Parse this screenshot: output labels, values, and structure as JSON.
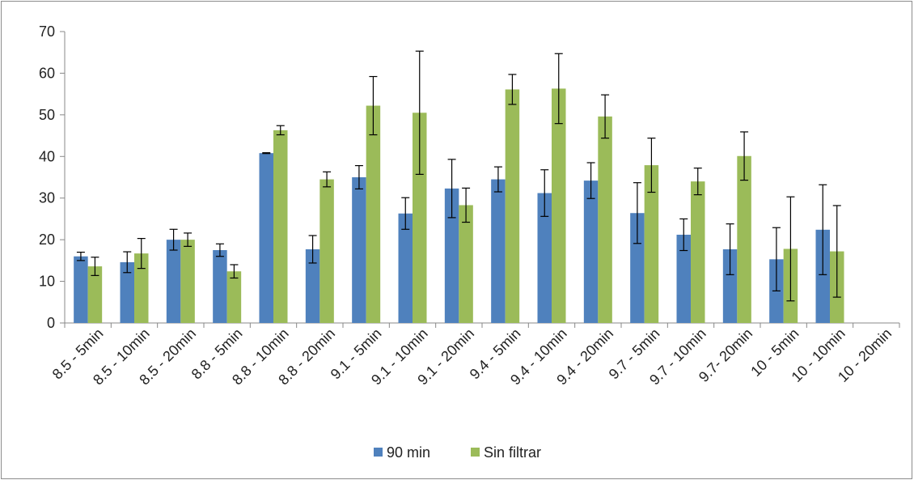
{
  "chart_data": {
    "type": "bar",
    "categories": [
      "8.5 - 5min",
      "8.5 - 10min",
      "8.5 - 20min",
      "8.8 - 5min",
      "8.8 - 10min",
      "8.8 - 20min",
      "9.1 - 5min",
      "9.1 - 10min",
      "9.1 - 20min",
      "9.4 - 5min",
      "9.4 - 10min",
      "9.4 - 20min",
      "9.7 - 5min",
      "9.7 - 10min",
      "9.7- 20min",
      "10 - 5min",
      "10 - 10min",
      "10 - 20min"
    ],
    "series": [
      {
        "name": "90 min",
        "color": "#4f81bd",
        "values": [
          16,
          14.6,
          20,
          17.5,
          40.8,
          17.7,
          35,
          26.3,
          32.3,
          34.5,
          31.2,
          34.2,
          26.4,
          21.2,
          17.7,
          15.3,
          22.4,
          null
        ],
        "errors": [
          1,
          2.5,
          2.5,
          1.5,
          0.1,
          3.3,
          2.8,
          3.8,
          7,
          3,
          5.6,
          4.3,
          7.3,
          3.8,
          6.1,
          7.6,
          10.8,
          null
        ]
      },
      {
        "name": "Sin filtrar",
        "color": "#9bbb59",
        "values": [
          13.6,
          16.7,
          20,
          12.4,
          46.3,
          34.5,
          52.2,
          50.5,
          28.3,
          56.1,
          56.3,
          49.6,
          37.9,
          34,
          40.1,
          17.8,
          17.2,
          null
        ],
        "errors": [
          2.2,
          3.6,
          1.6,
          1.6,
          1.1,
          1.8,
          7,
          14.8,
          4.1,
          3.6,
          8.4,
          5.2,
          6.5,
          3.2,
          5.8,
          12.5,
          11,
          null
        ]
      }
    ],
    "ylim": [
      0,
      70
    ],
    "yticks": [
      0,
      10,
      20,
      30,
      40,
      50,
      60,
      70
    ],
    "error_bars": true,
    "grid": false,
    "legend_position": "bottom"
  }
}
